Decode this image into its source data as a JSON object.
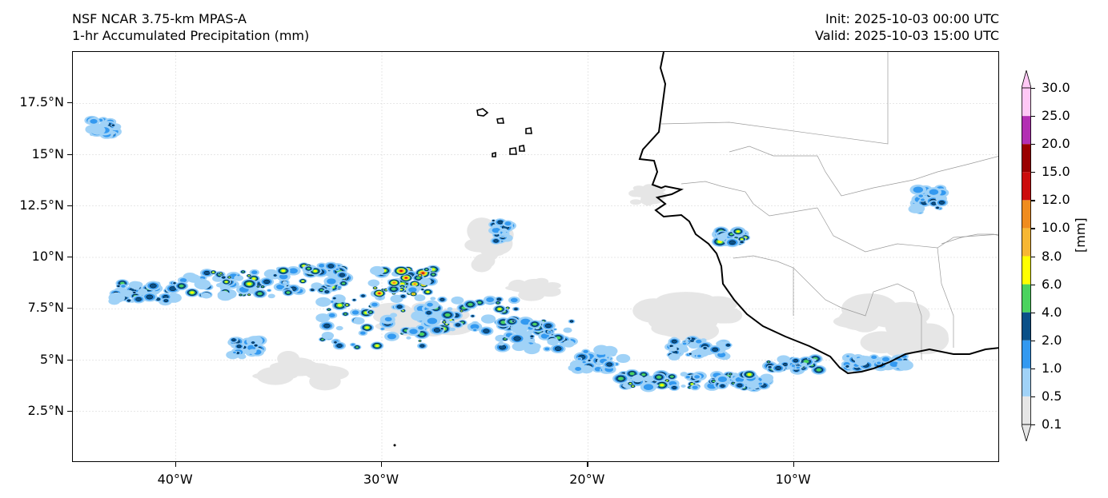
{
  "title": {
    "line1": "NSF NCAR 3.75-km MPAS-A",
    "line2": "1-hr Accumulated Precipitation (mm)",
    "init": "Init: 2025-10-03 00:00 UTC",
    "valid": "Valid: 2025-10-03 15:00 UTC"
  },
  "map": {
    "lon_range": [
      -45,
      0
    ],
    "lat_range": [
      0,
      20
    ],
    "lat_ticks": [
      {
        "value": 2.5,
        "label": "2.5°N"
      },
      {
        "value": 5,
        "label": "5°N"
      },
      {
        "value": 7.5,
        "label": "7.5°N"
      },
      {
        "value": 10,
        "label": "10°N"
      },
      {
        "value": 12.5,
        "label": "12.5°N"
      },
      {
        "value": 15,
        "label": "15°N"
      },
      {
        "value": 17.5,
        "label": "17.5°N"
      }
    ],
    "lon_ticks": [
      {
        "value": -40,
        "label": "40°W"
      },
      {
        "value": -30,
        "label": "30°W"
      },
      {
        "value": -20,
        "label": "20°W"
      },
      {
        "value": -10,
        "label": "10°W"
      }
    ],
    "gridlines": true,
    "coastline_color": "#000000",
    "border_color": "#9a9a9a"
  },
  "colorbar": {
    "units": "[mm]",
    "levels": [
      "0.1",
      "0.5",
      "1.0",
      "2.0",
      "4.0",
      "6.0",
      "8.0",
      "10.0",
      "12.0",
      "15.0",
      "20.0",
      "25.0",
      "30.0"
    ],
    "colors": [
      "#e6e6e6",
      "#a0d2f7",
      "#3399f0",
      "#0a5088",
      "#4bd35e",
      "#ffff00",
      "#f7b733",
      "#f08c1e",
      "#cc0c0c",
      "#9a0000",
      "#b32fb3",
      "#ffc8f5"
    ],
    "extend": "both"
  },
  "precip_bands": [
    {
      "lon": -41.5,
      "lat": 8.3,
      "w": 3.0,
      "h": 0.9,
      "level": 4
    },
    {
      "lon": -37.5,
      "lat": 8.7,
      "w": 4.5,
      "h": 1.2,
      "level": 5
    },
    {
      "lon": -33.5,
      "lat": 8.9,
      "w": 3.5,
      "h": 1.4,
      "level": 5
    },
    {
      "lon": -30.5,
      "lat": 7.0,
      "w": 5.0,
      "h": 3.0,
      "level": 5
    },
    {
      "lon": -29.0,
      "lat": 8.8,
      "w": 3.0,
      "h": 1.3,
      "level": 8
    },
    {
      "lon": -25.5,
      "lat": 7.2,
      "w": 4.5,
      "h": 1.6,
      "level": 5
    },
    {
      "lon": -22.5,
      "lat": 6.2,
      "w": 3.5,
      "h": 1.4,
      "level": 4
    },
    {
      "lon": -19.5,
      "lat": 5.0,
      "w": 2.5,
      "h": 1.0,
      "level": 3
    },
    {
      "lon": -16.5,
      "lat": 4.0,
      "w": 4.0,
      "h": 0.7,
      "level": 5
    },
    {
      "lon": -12.5,
      "lat": 4.0,
      "w": 3.0,
      "h": 0.7,
      "level": 5
    },
    {
      "lon": -10.0,
      "lat": 4.8,
      "w": 2.5,
      "h": 0.6,
      "level": 4
    },
    {
      "lon": -6.0,
      "lat": 4.9,
      "w": 3.0,
      "h": 0.6,
      "level": 3
    },
    {
      "lon": -36.5,
      "lat": 5.6,
      "w": 1.5,
      "h": 0.9,
      "level": 3
    },
    {
      "lon": -13.0,
      "lat": 11.0,
      "w": 1.3,
      "h": 0.6,
      "level": 5
    },
    {
      "lon": -24.2,
      "lat": 11.3,
      "w": 0.8,
      "h": 1.0,
      "level": 3
    },
    {
      "lon": -43.5,
      "lat": 16.3,
      "w": 1.2,
      "h": 0.8,
      "level": 3
    },
    {
      "lon": -3.5,
      "lat": 12.8,
      "w": 1.4,
      "h": 1.2,
      "level": 3
    },
    {
      "lon": -14.5,
      "lat": 5.6,
      "w": 3.0,
      "h": 0.9,
      "level": 3
    }
  ],
  "light_rain_areas": [
    {
      "lon": -24.5,
      "lat": 10.5,
      "w": 2.5,
      "h": 2.2
    },
    {
      "lon": -28.0,
      "lat": 7.0,
      "w": 4.0,
      "h": 1.5
    },
    {
      "lon": -17.0,
      "lat": 13.0,
      "w": 2.0,
      "h": 1.0
    },
    {
      "lon": -15.0,
      "lat": 7.2,
      "w": 5.0,
      "h": 2.0
    },
    {
      "lon": -34.0,
      "lat": 4.5,
      "w": 4.0,
      "h": 1.5
    },
    {
      "lon": -22.5,
      "lat": 8.5,
      "w": 2.5,
      "h": 1.0
    },
    {
      "lon": -5.0,
      "lat": 6.5,
      "w": 5.0,
      "h": 2.5
    }
  ]
}
